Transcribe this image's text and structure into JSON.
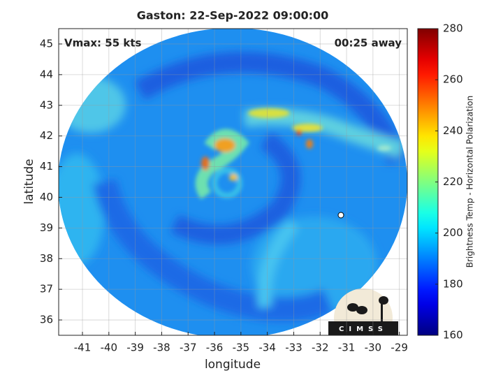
{
  "chart_data": {
    "type": "image",
    "title": "Gaston: 22-Sep-2022 09:00:00",
    "annotations": [
      "Vmax: 55 kts",
      "00:25 away"
    ],
    "xlabel": "longitude",
    "ylabel": "latitude",
    "xlim": [
      -41.9,
      -28.7
    ],
    "xticks": [
      -41,
      -40,
      -39,
      -38,
      -37,
      -36,
      -35,
      -34,
      -33,
      -32,
      -31,
      -30,
      -29
    ],
    "ylim": [
      35.5,
      45.5
    ],
    "yticks": [
      36,
      37,
      38,
      39,
      40,
      41,
      42,
      43,
      44,
      45
    ],
    "grid": true,
    "colorbar": {
      "label": "Brightness Temp - Horizontal Polarization",
      "lim": [
        160,
        280
      ],
      "ticks": [
        160,
        180,
        200,
        220,
        240,
        260,
        280
      ],
      "colormap": "jet"
    },
    "logo": "CIMSS"
  }
}
